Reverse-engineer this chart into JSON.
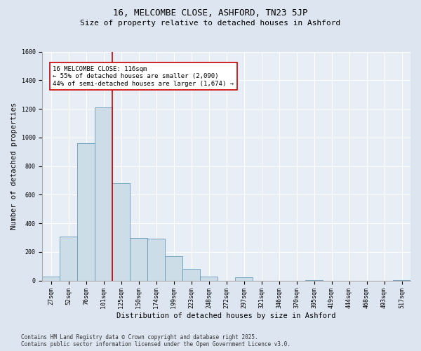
{
  "title": "16, MELCOMBE CLOSE, ASHFORD, TN23 5JP",
  "subtitle": "Size of property relative to detached houses in Ashford",
  "xlabel": "Distribution of detached houses by size in Ashford",
  "ylabel": "Number of detached properties",
  "categories": [
    "27sqm",
    "52sqm",
    "76sqm",
    "101sqm",
    "125sqm",
    "150sqm",
    "174sqm",
    "199sqm",
    "223sqm",
    "248sqm",
    "272sqm",
    "297sqm",
    "321sqm",
    "346sqm",
    "370sqm",
    "395sqm",
    "419sqm",
    "444sqm",
    "468sqm",
    "493sqm",
    "517sqm"
  ],
  "values": [
    30,
    310,
    960,
    1210,
    680,
    300,
    295,
    170,
    80,
    30,
    0,
    25,
    0,
    0,
    0,
    5,
    0,
    0,
    0,
    0,
    5
  ],
  "bar_color": "#ccdde8",
  "bar_edge_color": "#6699bb",
  "vline_color": "#cc0000",
  "annotation_text": "16 MELCOMBE CLOSE: 116sqm\n← 55% of detached houses are smaller (2,090)\n44% of semi-detached houses are larger (1,674) →",
  "annotation_box_color": "#ffffff",
  "annotation_box_edge": "#cc0000",
  "ylim": [
    0,
    1600
  ],
  "yticks": [
    0,
    200,
    400,
    600,
    800,
    1000,
    1200,
    1400,
    1600
  ],
  "footer": "Contains HM Land Registry data © Crown copyright and database right 2025.\nContains public sector information licensed under the Open Government Licence v3.0.",
  "bg_color": "#dde6f0",
  "plot_bg_color": "#e8eef5",
  "grid_color": "#ffffff",
  "title_fontsize": 9,
  "subtitle_fontsize": 8,
  "axis_label_fontsize": 7.5,
  "tick_fontsize": 6,
  "annotation_fontsize": 6.5,
  "footer_fontsize": 5.5
}
